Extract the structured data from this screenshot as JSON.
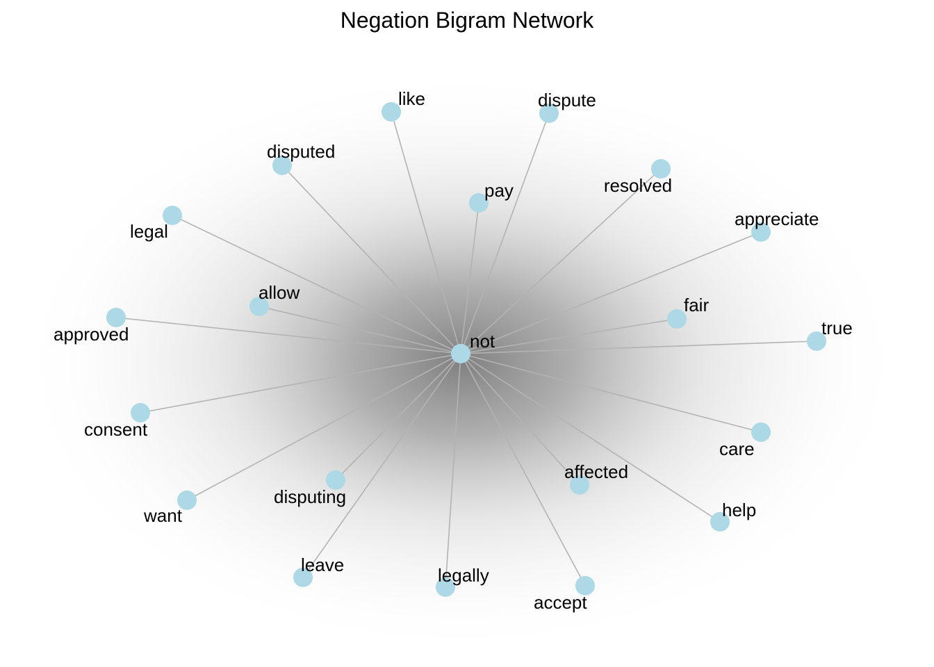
{
  "title": "Negation Bigram Network",
  "colors": {
    "node": "#add8e6",
    "edge": "#b3b3b3",
    "glow": "#808080",
    "background": "#ffffff"
  },
  "center": {
    "id": "not",
    "label": "not"
  },
  "nodes": [
    {
      "id": "like",
      "label": "like"
    },
    {
      "id": "dispute",
      "label": "dispute"
    },
    {
      "id": "disputed",
      "label": "disputed"
    },
    {
      "id": "resolved",
      "label": "resolved"
    },
    {
      "id": "pay",
      "label": "pay"
    },
    {
      "id": "legal",
      "label": "legal"
    },
    {
      "id": "appreciate",
      "label": "appreciate"
    },
    {
      "id": "allow",
      "label": "allow"
    },
    {
      "id": "fair",
      "label": "fair"
    },
    {
      "id": "approved",
      "label": "approved"
    },
    {
      "id": "true",
      "label": "true"
    },
    {
      "id": "consent",
      "label": "consent"
    },
    {
      "id": "care",
      "label": "care"
    },
    {
      "id": "affected",
      "label": "affected"
    },
    {
      "id": "disputing",
      "label": "disputing"
    },
    {
      "id": "want",
      "label": "want"
    },
    {
      "id": "help",
      "label": "help"
    },
    {
      "id": "leave",
      "label": "leave"
    },
    {
      "id": "legally",
      "label": "legally"
    },
    {
      "id": "accept",
      "label": "accept"
    }
  ],
  "edges": [
    {
      "from": "not",
      "to": "like"
    },
    {
      "from": "not",
      "to": "dispute"
    },
    {
      "from": "not",
      "to": "disputed"
    },
    {
      "from": "not",
      "to": "resolved"
    },
    {
      "from": "not",
      "to": "pay"
    },
    {
      "from": "not",
      "to": "legal"
    },
    {
      "from": "not",
      "to": "appreciate"
    },
    {
      "from": "not",
      "to": "allow"
    },
    {
      "from": "not",
      "to": "fair"
    },
    {
      "from": "not",
      "to": "approved"
    },
    {
      "from": "not",
      "to": "true"
    },
    {
      "from": "not",
      "to": "consent"
    },
    {
      "from": "not",
      "to": "care"
    },
    {
      "from": "not",
      "to": "affected"
    },
    {
      "from": "not",
      "to": "disputing"
    },
    {
      "from": "not",
      "to": "want"
    },
    {
      "from": "not",
      "to": "help"
    },
    {
      "from": "not",
      "to": "leave"
    },
    {
      "from": "not",
      "to": "legally"
    },
    {
      "from": "not",
      "to": "accept"
    }
  ]
}
